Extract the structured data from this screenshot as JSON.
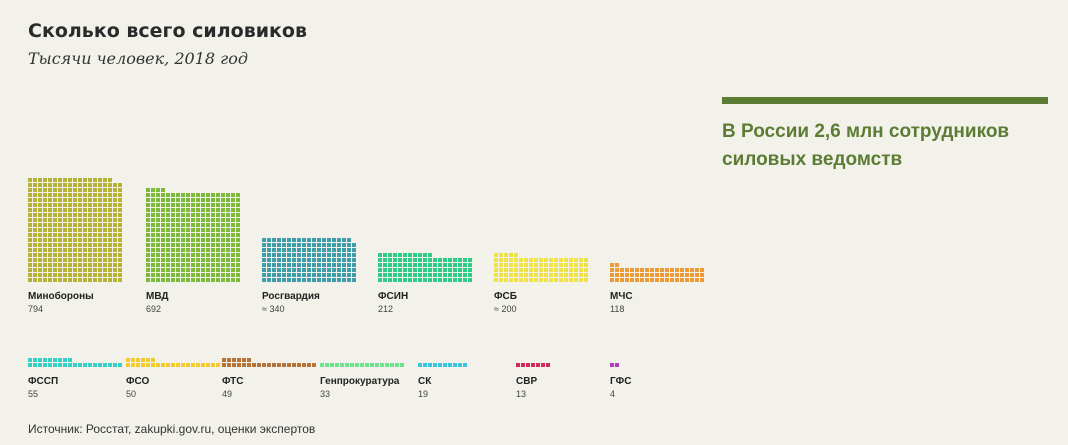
{
  "header": {
    "title": "Сколько всего силовиков",
    "subtitle": "Тысячи человек, 2018 год"
  },
  "summary": {
    "text": "В России 2,6 млн сотрудников силовых ведомств",
    "color": "#5c7c33"
  },
  "source": "Источник: Росстат, zakupki.gov.ru, оценки экспертов",
  "chart_data": {
    "type": "bar",
    "unit": "thousand people",
    "categories": [
      "Минобороны",
      "МВД",
      "Росгвардия",
      "ФСИН",
      "ФСБ",
      "МЧС",
      "ФССП",
      "ФСО",
      "ФТС",
      "Генпрокуратура",
      "СК",
      "СВР",
      "ГФС"
    ],
    "values": [
      794,
      692,
      340,
      212,
      200,
      118,
      55,
      50,
      49,
      33,
      19,
      13,
      4
    ],
    "value_labels": [
      "794",
      "692",
      "≈ 340",
      "212",
      "≈ 200",
      "118",
      "55",
      "50",
      "49",
      "33",
      "19",
      "13",
      "4"
    ],
    "colors": [
      "#b5b23a",
      "#7db93a",
      "#3f9cab",
      "#2ecc88",
      "#efe14a",
      "#ee9a35",
      "#37cfc6",
      "#f2cb2f",
      "#b5733a",
      "#6fe08d",
      "#3cc4e0",
      "#d12a5a",
      "#b03cc1"
    ]
  }
}
